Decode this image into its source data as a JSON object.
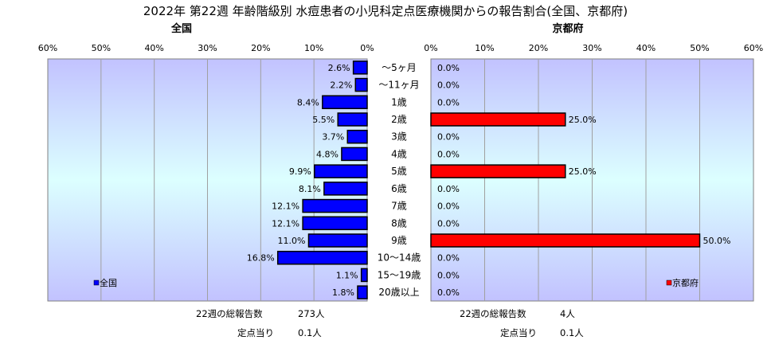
{
  "chart_data": {
    "type": "bar",
    "title": "2022年 第22週 年齢階級別 水痘患者の小児科定点医療機関からの報告割合(全国、京都府)",
    "categories": [
      "～5ヶ月",
      "～11ヶ月",
      "1歳",
      "2歳",
      "3歳",
      "4歳",
      "5歳",
      "6歳",
      "7歳",
      "8歳",
      "9歳",
      "10～14歳",
      "15～19歳",
      "20歳以上"
    ],
    "xlim": [
      0,
      60
    ],
    "x_ticks": [
      "60%",
      "50%",
      "40%",
      "30%",
      "20%",
      "10%",
      "0%"
    ],
    "x_ticks_right": [
      "0%",
      "10%",
      "20%",
      "30%",
      "40%",
      "50%",
      "60%"
    ],
    "grid": true,
    "legend_position": "bottom-left / bottom-right",
    "series": [
      {
        "name": "全国",
        "panel_title": "全国",
        "color": "#0000ff",
        "values": [
          2.6,
          2.2,
          8.4,
          5.5,
          3.7,
          4.8,
          9.9,
          8.1,
          12.1,
          12.1,
          11.0,
          16.8,
          1.1,
          1.8
        ],
        "labels": [
          "2.6%",
          "2.2%",
          "8.4%",
          "5.5%",
          "3.7%",
          "4.8%",
          "9.9%",
          "8.1%",
          "12.1%",
          "12.1%",
          "11.0%",
          "16.8%",
          "1.1%",
          "1.8%"
        ]
      },
      {
        "name": "京都府",
        "panel_title": "京都府",
        "color": "#ff0000",
        "values": [
          0,
          0,
          0,
          25.0,
          0,
          0,
          25.0,
          0,
          0,
          0,
          50.0,
          0,
          0,
          0
        ],
        "labels": [
          "0.0%",
          "0.0%",
          "0.0%",
          "25.0%",
          "0.0%",
          "0.0%",
          "25.0%",
          "0.0%",
          "0.0%",
          "0.0%",
          "50.0%",
          "0.0%",
          "0.0%",
          "0.0%"
        ]
      }
    ]
  },
  "footer": {
    "left": {
      "total_label": "22週の総報告数",
      "total_value": "273人",
      "per_label": "定点当り",
      "per_value": "0.1人"
    },
    "right": {
      "total_label": "22週の総報告数",
      "total_value": "4人",
      "per_label": "定点当り",
      "per_value": "0.1人"
    }
  }
}
